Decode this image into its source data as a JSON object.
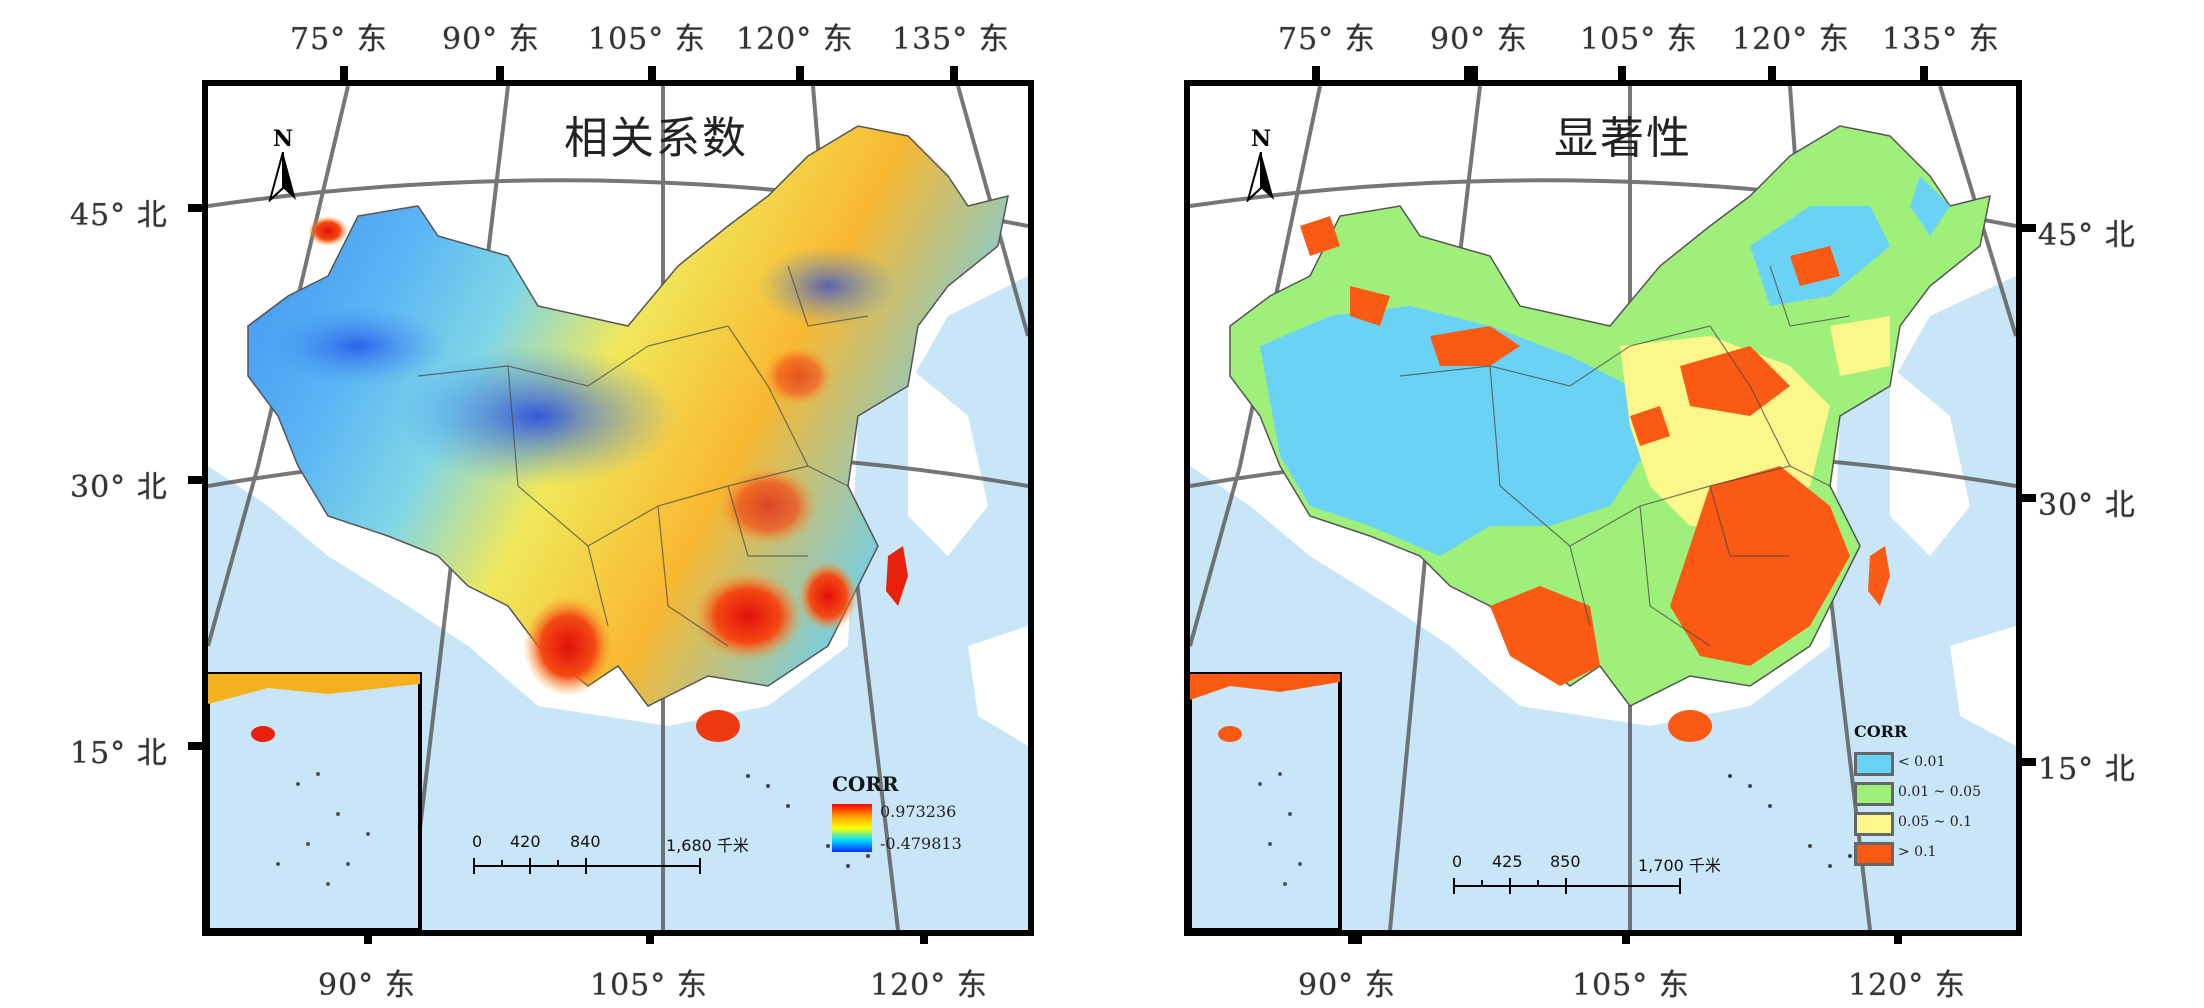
{
  "left": {
    "title": "相关系数",
    "top_ticks": [
      "75° 东",
      "90° 东",
      "105° 东",
      "120° 东",
      "135° 东"
    ],
    "left_ticks": [
      "45° 北",
      "30° 北",
      "15° 北"
    ],
    "bottom_ticks": [
      "90° 东",
      "105° 东",
      "120° 东"
    ],
    "north_label": "N",
    "legend": {
      "title": "CORR",
      "max": "0.973236",
      "min": "-0.479813"
    },
    "scale": {
      "labels": [
        "0",
        "420",
        "840",
        "1,680 千米"
      ]
    }
  },
  "right": {
    "title": "显著性",
    "top_ticks": [
      "75° 东",
      "90° 东",
      "105° 东",
      "120° 东",
      "135° 东"
    ],
    "right_ticks": [
      "45° 北",
      "30° 北",
      "15° 北"
    ],
    "bottom_ticks": [
      "90° 东",
      "105° 东",
      "120° 东"
    ],
    "north_label": "N",
    "legend": {
      "title": "CORR",
      "items": [
        {
          "label": "< 0.01",
          "color": "#6ad3f5"
        },
        {
          "label": "0.01 ~ 0.05",
          "color": "#9ef07a"
        },
        {
          "label": "0.05 ~ 0.1",
          "color": "#fbf78a"
        },
        {
          "label": "> 0.1",
          "color": "#fa5a14"
        }
      ]
    },
    "scale": {
      "labels": [
        "0",
        "425",
        "850",
        "1,700 千米"
      ]
    }
  },
  "colors": {
    "sea": "#c8e6f8",
    "land_outside": "#ffffff",
    "frame": "#000000",
    "gradient_high": "#ff0000",
    "gradient_low": "#0a2cff"
  }
}
